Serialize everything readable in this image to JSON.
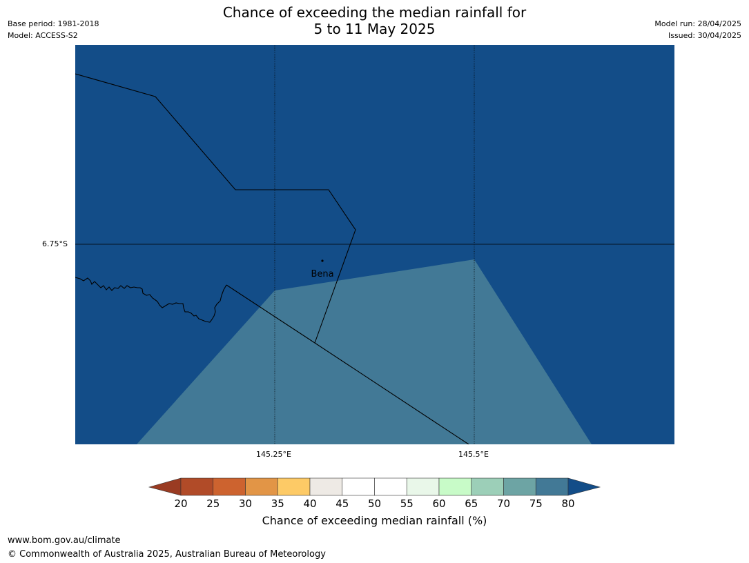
{
  "title_line1": "Chance of exceeding the median rainfall for",
  "title_line2": "5 to 11 May 2025",
  "meta_left": {
    "base_period": "Base period: 1981-2018",
    "model": "Model: ACCESS-S2"
  },
  "meta_right": {
    "model_run": "Model run: 28/04/2025",
    "issued": "Issued: 30/04/2025"
  },
  "map": {
    "latitude_label": "6.75°S",
    "longitude_labels": [
      "145.25°E",
      "145.5°E"
    ],
    "place_label": "Bena",
    "colors": {
      "background_band": "#134d88",
      "lower_band": "#427996",
      "boundary": "#000000"
    }
  },
  "colorbar": {
    "label": "Chance of exceeding median rainfall (%)",
    "ticks": [
      "20",
      "25",
      "30",
      "35",
      "40",
      "45",
      "50",
      "55",
      "60",
      "65",
      "70",
      "75",
      "80"
    ],
    "bins": [
      "#b14b28",
      "#cd632f",
      "#e29546",
      "#fdca66",
      "#eeeae5",
      "#ffffff",
      "#ffffff",
      "#e9f7e9",
      "#c8fbc8",
      "#9ccfb8",
      "#6da4a4",
      "#427996"
    ],
    "under_color": "#9a3b22",
    "over_color": "#134d88"
  },
  "footer": {
    "url": "www.bom.gov.au/climate",
    "copyright": "© Commonwealth of Australia 2025, Australian Bureau of Meteorology"
  }
}
